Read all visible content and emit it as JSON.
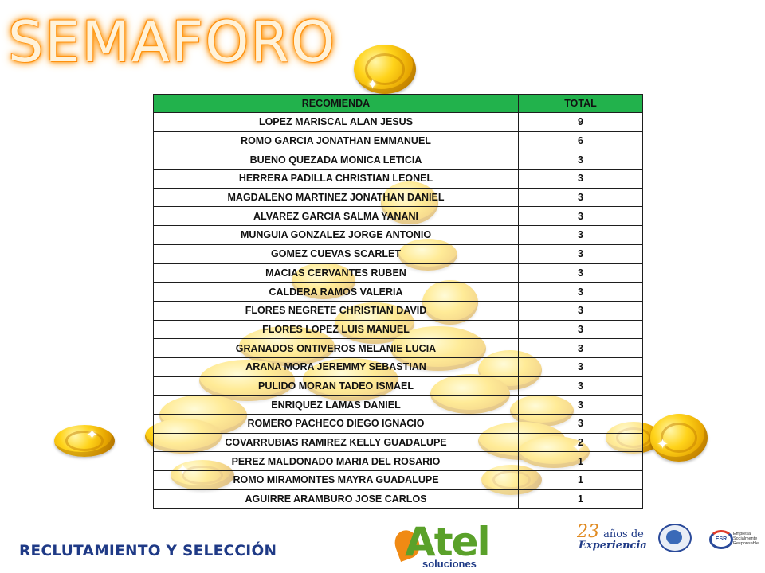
{
  "title": "SEMAFORO",
  "table": {
    "headers": [
      "RECOMIENDA",
      "TOTAL"
    ],
    "rows": [
      [
        "LOPEZ MARISCAL ALAN JESUS",
        "9"
      ],
      [
        "ROMO GARCIA JONATHAN EMMANUEL",
        "6"
      ],
      [
        "BUENO QUEZADA MONICA LETICIA",
        "3"
      ],
      [
        "HERRERA PADILLA CHRISTIAN LEONEL",
        "3"
      ],
      [
        "MAGDALENO MARTINEZ JONATHAN DANIEL",
        "3"
      ],
      [
        "ALVAREZ GARCIA SALMA YANANI",
        "3"
      ],
      [
        "MUNGUIA GONZALEZ JORGE ANTONIO",
        "3"
      ],
      [
        "GOMEZ CUEVAS SCARLET",
        "3"
      ],
      [
        "MACIAS CERVANTES RUBEN",
        "3"
      ],
      [
        "CALDERA RAMOS VALERIA",
        "3"
      ],
      [
        "FLORES NEGRETE CHRISTIAN DAVID",
        "3"
      ],
      [
        "FLORES LOPEZ LUIS MANUEL",
        "3"
      ],
      [
        "GRANADOS ONTIVEROS MELANIE LUCIA",
        "3"
      ],
      [
        "ARANA MORA JEREMMY SEBASTIAN",
        "3"
      ],
      [
        "PULIDO MORAN TADEO ISMAEL",
        "3"
      ],
      [
        "ENRIQUEZ LAMAS DANIEL",
        "3"
      ],
      [
        "ROMERO PACHECO DIEGO IGNACIO",
        "3"
      ],
      [
        "COVARRUBIAS RAMIREZ KELLY GUADALUPE",
        "2"
      ],
      [
        "PEREZ MALDONADO MARIA DEL ROSARIO",
        "1"
      ],
      [
        "ROMO MIRAMONTES MAYRA GUADALUPE",
        "1"
      ],
      [
        "AGUIRRE ARAMBURO JOSE CARLOS",
        "1"
      ]
    ]
  },
  "footer": {
    "department": "RECLUTAMIENTO Y SELECCIÓN",
    "logo_word": "Atel",
    "logo_sub": "soluciones",
    "experience_num": "23",
    "experience_anos": "años de",
    "experience_label": "Experiencia",
    "esr_badge": "ESR",
    "esr_text": "Empresa Socialmente Responsable"
  },
  "colors": {
    "header_green": "#22b24c",
    "title_glow": "#ff8c00",
    "coin_gold": "#ffd31a",
    "footer_blue": "#1f3a86"
  },
  "icons": [
    "euro-coin-icon",
    "sparkle-icon",
    "globe-icon",
    "esr-badge-icon"
  ]
}
